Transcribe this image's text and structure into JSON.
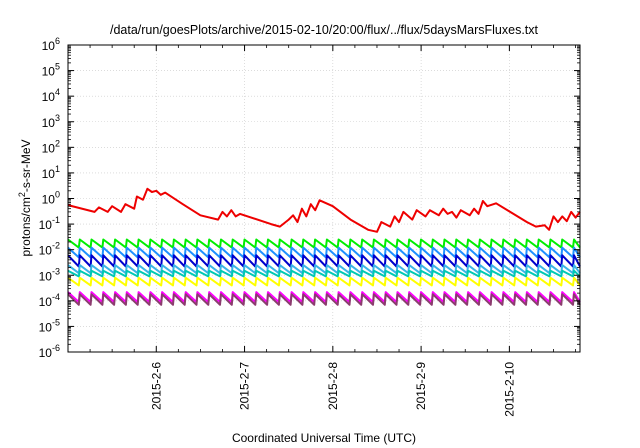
{
  "chart_data": {
    "type": "line",
    "title": "/data/run/goesPlots/archive/2015-02-10/20:00/flux/../flux/5daysMarsFluxes.txt",
    "xlabel": "Coordinated Universal Time (UTC)",
    "ylabel": "protons/cm²-s-sr-MeV",
    "ylabel_parts": {
      "pre": "protons/cm",
      "sup": "2",
      "post": "-s-sr-MeV"
    },
    "yscale": "log",
    "ylim_exponents": [
      -6,
      6
    ],
    "yticks": [
      {
        "base": "10",
        "exp": "6"
      },
      {
        "base": "10",
        "exp": "5"
      },
      {
        "base": "10",
        "exp": "4"
      },
      {
        "base": "10",
        "exp": "3"
      },
      {
        "base": "10",
        "exp": "2"
      },
      {
        "base": "10",
        "exp": "1"
      },
      {
        "base": "10",
        "exp": "0"
      },
      {
        "base": "10",
        "exp": "-1"
      },
      {
        "base": "10",
        "exp": "-2"
      },
      {
        "base": "10",
        "exp": "-3"
      },
      {
        "base": "10",
        "exp": "-4"
      },
      {
        "base": "10",
        "exp": "-5"
      },
      {
        "base": "10",
        "exp": "-6"
      }
    ],
    "xlim": [
      0,
      5.8
    ],
    "xticks": [
      {
        "label": "2015-2-6",
        "x": 1
      },
      {
        "label": "2015-2-7",
        "x": 2
      },
      {
        "label": "2015-2-8",
        "x": 3
      },
      {
        "label": "2015-2-9",
        "x": 4
      },
      {
        "label": "2015-2-10",
        "x": 5
      }
    ],
    "grid": true,
    "sawtooth_period_days": 0.1333,
    "series": [
      {
        "color": "#ee0000",
        "kind": "events",
        "points": [
          [
            0,
            0.55
          ],
          [
            0.3,
            0.3
          ],
          [
            0.35,
            0.45
          ],
          [
            0.45,
            0.3
          ],
          [
            0.5,
            0.5
          ],
          [
            0.6,
            0.3
          ],
          [
            0.65,
            0.6
          ],
          [
            0.75,
            0.4
          ],
          [
            0.78,
            1.2
          ],
          [
            0.85,
            0.9
          ],
          [
            0.9,
            2.4
          ],
          [
            0.95,
            1.8
          ],
          [
            1.0,
            2.0
          ],
          [
            1.05,
            1.4
          ],
          [
            1.1,
            1.7
          ],
          [
            1.3,
            0.6
          ],
          [
            1.5,
            0.22
          ],
          [
            1.7,
            0.15
          ],
          [
            1.75,
            0.3
          ],
          [
            1.8,
            0.2
          ],
          [
            1.85,
            0.35
          ],
          [
            1.9,
            0.2
          ],
          [
            1.95,
            0.25
          ],
          [
            2.3,
            0.1
          ],
          [
            2.4,
            0.08
          ],
          [
            2.5,
            0.15
          ],
          [
            2.55,
            0.22
          ],
          [
            2.6,
            0.12
          ],
          [
            2.65,
            0.4
          ],
          [
            2.7,
            0.2
          ],
          [
            2.75,
            0.6
          ],
          [
            2.8,
            0.35
          ],
          [
            2.85,
            0.85
          ],
          [
            3.0,
            0.5
          ],
          [
            3.2,
            0.15
          ],
          [
            3.4,
            0.06
          ],
          [
            3.5,
            0.05
          ],
          [
            3.55,
            0.12
          ],
          [
            3.65,
            0.08
          ],
          [
            3.7,
            0.2
          ],
          [
            3.75,
            0.12
          ],
          [
            3.8,
            0.3
          ],
          [
            3.9,
            0.15
          ],
          [
            3.95,
            0.35
          ],
          [
            4.05,
            0.2
          ],
          [
            4.1,
            0.35
          ],
          [
            4.2,
            0.22
          ],
          [
            4.25,
            0.4
          ],
          [
            4.3,
            0.25
          ],
          [
            4.35,
            0.3
          ],
          [
            4.4,
            0.18
          ],
          [
            4.45,
            0.35
          ],
          [
            4.55,
            0.22
          ],
          [
            4.6,
            0.4
          ],
          [
            4.65,
            0.25
          ],
          [
            4.7,
            0.8
          ],
          [
            4.75,
            0.5
          ],
          [
            4.85,
            0.65
          ],
          [
            5.2,
            0.12
          ],
          [
            5.3,
            0.08
          ],
          [
            5.4,
            0.09
          ],
          [
            5.45,
            0.06
          ],
          [
            5.5,
            0.2
          ],
          [
            5.55,
            0.12
          ],
          [
            5.6,
            0.2
          ],
          [
            5.65,
            0.13
          ],
          [
            5.7,
            0.3
          ],
          [
            5.75,
            0.18
          ],
          [
            5.8,
            0.3
          ]
        ]
      },
      {
        "color": "#00ee00",
        "kind": "sawtooth",
        "peak": 0.025,
        "base": 0.012
      },
      {
        "color": "#1e90ff",
        "kind": "sawtooth",
        "peak": 0.012,
        "base": 0.005
      },
      {
        "color": "#0000cd",
        "kind": "sawtooth",
        "peak": 0.006,
        "base": 0.0022
      },
      {
        "color": "#3cb4e6",
        "kind": "sawtooth",
        "peak": 0.0025,
        "base": 0.0012
      },
      {
        "color": "#00c8b4",
        "kind": "sawtooth",
        "peak": 0.0015,
        "base": 0.0009
      },
      {
        "color": "#ffff00",
        "kind": "sawtooth",
        "peak": 0.0008,
        "base": 0.0004
      },
      {
        "color": "#ff00ff",
        "kind": "sawtooth",
        "peak": 0.00022,
        "base": 9e-05
      },
      {
        "color": "#8b3c6e",
        "kind": "sawtooth",
        "peak": 0.00018,
        "base": 7e-05
      }
    ]
  }
}
